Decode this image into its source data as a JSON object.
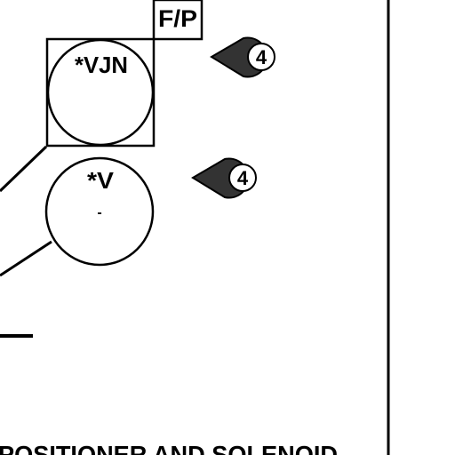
{
  "diagram": {
    "instruments": {
      "top_label": "*VJN",
      "bottom_label": "*V",
      "bottom_dot": "-"
    },
    "box_label": "F/P",
    "flags": [
      {
        "value": "4"
      },
      {
        "value": "4"
      }
    ],
    "caption": "POSITIONER AND SOLENOID"
  }
}
